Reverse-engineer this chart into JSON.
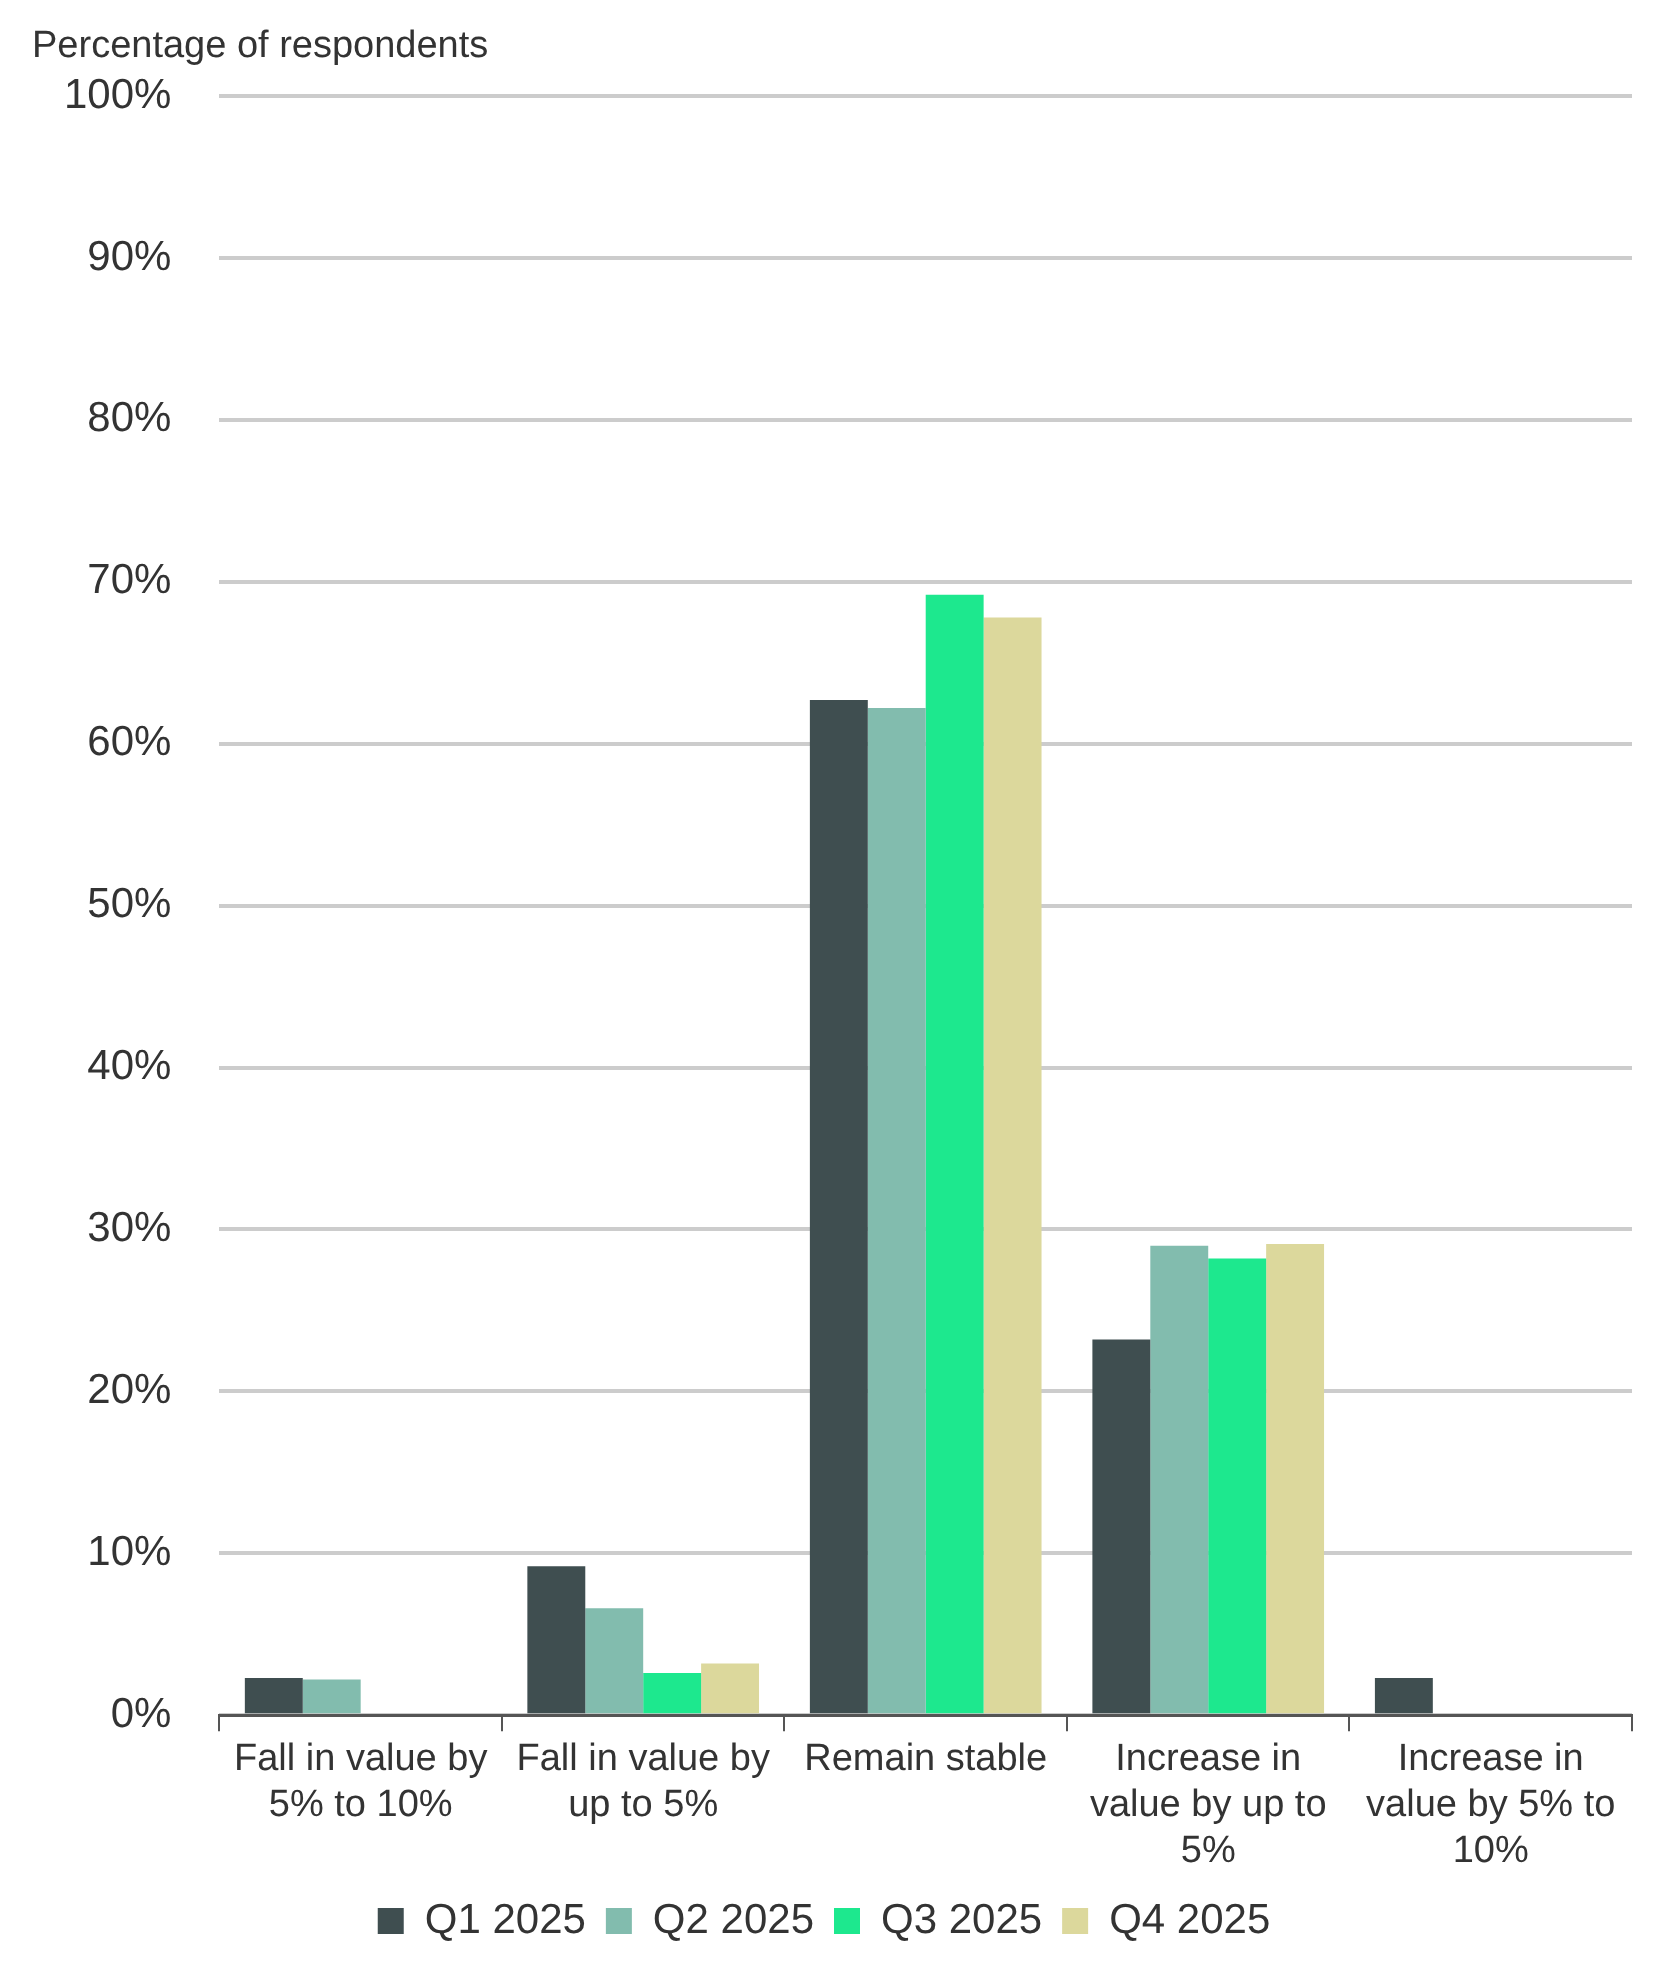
{
  "chart_data": {
    "type": "bar",
    "ylabel": "Percentage of respondents",
    "categories": [
      "Fall in value by 5% to 10%",
      "Fall in value by up to 5%",
      "Remain stable",
      "Increase in value by up to 5%",
      "Increase in value by 5% to 10%"
    ],
    "series": [
      {
        "name": "Q1 2025",
        "color": "#3f4e50",
        "values": [
          2.3,
          9.2,
          62.7,
          23.2,
          2.3
        ]
      },
      {
        "name": "Q2 2025",
        "color": "#82bcae",
        "values": [
          2.2,
          6.6,
          62.2,
          29.0,
          0
        ]
      },
      {
        "name": "Q3 2025",
        "color": "#1de88e",
        "values": [
          0,
          2.6,
          69.2,
          28.2,
          0
        ]
      },
      {
        "name": "Q4 2025",
        "color": "#dcd89c",
        "values": [
          0,
          3.2,
          67.8,
          29.1,
          0
        ]
      }
    ],
    "ylim": [
      0,
      100
    ],
    "yticks": [
      {
        "value": 0,
        "label": "0%"
      },
      {
        "value": 10,
        "label": "10%"
      },
      {
        "value": 20,
        "label": "20%"
      },
      {
        "value": 30,
        "label": "30%"
      },
      {
        "value": 40,
        "label": "40%"
      },
      {
        "value": 50,
        "label": "50%"
      },
      {
        "value": 60,
        "label": "60%"
      },
      {
        "value": 70,
        "label": "70%"
      },
      {
        "value": 80,
        "label": "80%"
      },
      {
        "value": 90,
        "label": "90%"
      },
      {
        "value": 100,
        "label": "100%"
      }
    ],
    "grid": "y",
    "legend": "bottom"
  }
}
